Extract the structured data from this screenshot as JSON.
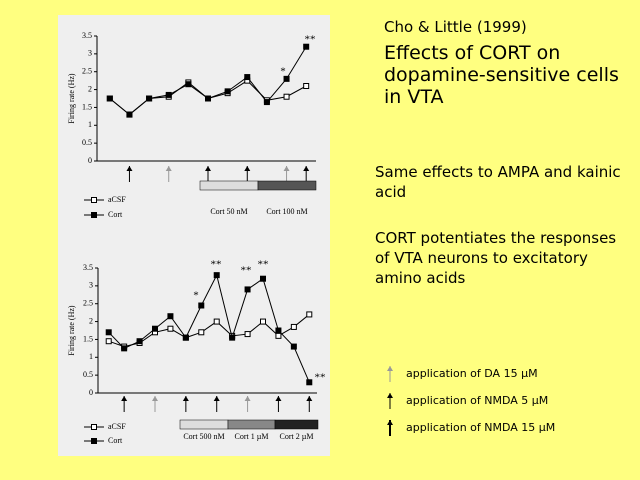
{
  "slide": {
    "citation": "Cho & Little (1999)",
    "title": "Effects of CORT on dopamine-sensitive cells in VTA",
    "point1": "Same effects to AMPA and kainic acid",
    "point2": "CORT potentiates the responses of VTA neurons to excitatory amino acids",
    "key": [
      "application of DA 15 µM",
      "application of NMDA 5 µM",
      "application of NMDA 15 µM"
    ]
  },
  "chart_data": [
    {
      "type": "line",
      "y_label": "Firing rate (Hz)",
      "categories": [
        null,
        null,
        null,
        null,
        null,
        null,
        null,
        null,
        null,
        null,
        null
      ],
      "ylim": [
        0,
        3.5
      ],
      "yticks": [
        0,
        0.5,
        1,
        1.5,
        2,
        2.5,
        3,
        3.5
      ],
      "series": [
        {
          "name": "aCSF",
          "color": "#000000",
          "marker": "open",
          "values": [
            1.75,
            1.3,
            1.75,
            1.8,
            2.2,
            1.75,
            1.9,
            2.25,
            1.7,
            1.8,
            2.1
          ]
        },
        {
          "name": "Cort",
          "color": "#000000",
          "marker": "filled",
          "values": [
            1.75,
            1.3,
            1.75,
            1.85,
            2.15,
            1.75,
            1.95,
            2.35,
            1.65,
            2.3,
            3.2
          ]
        }
      ],
      "annotations": [
        "*",
        "**"
      ],
      "treatments": [
        "Cort 50 nM",
        "Cort 100 nM"
      ]
    },
    {
      "type": "line",
      "y_label": "Firing rate (Hz)",
      "categories": [
        null,
        null,
        null,
        null,
        null,
        null,
        null,
        null,
        null,
        null,
        null,
        null,
        null,
        null
      ],
      "ylim": [
        0,
        3.5
      ],
      "yticks": [
        0,
        0.5,
        1,
        1.5,
        2,
        2.5,
        3,
        3.5
      ],
      "series": [
        {
          "name": "aCSF",
          "color": "#000000",
          "marker": "open",
          "values": [
            1.45,
            1.3,
            1.4,
            1.7,
            1.8,
            1.55,
            1.7,
            2.0,
            1.6,
            1.65,
            2.0,
            1.6,
            1.85,
            2.2
          ]
        },
        {
          "name": "Cort",
          "color": "#000000",
          "marker": "filled",
          "values": [
            1.7,
            1.25,
            1.45,
            1.8,
            2.15,
            1.55,
            2.45,
            3.3,
            1.55,
            2.9,
            3.2,
            1.75,
            1.3,
            0.3
          ]
        }
      ],
      "annotations": [
        "*",
        "**",
        "**",
        "**",
        "**"
      ],
      "treatments": [
        "Cort 500 nM",
        "Cort 1 µM",
        "Cort 2 µM"
      ]
    }
  ]
}
